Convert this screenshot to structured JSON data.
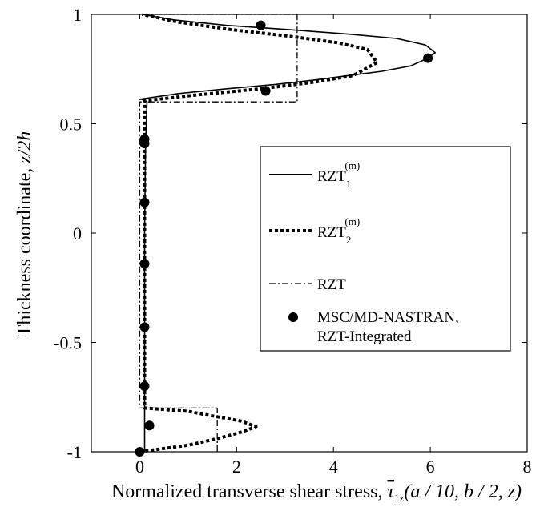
{
  "chart_data": {
    "type": "line",
    "xlabel_main": "Normalized transverse shear stress, ",
    "xlabel_tau": "τ",
    "xlabel_sub": "1z",
    "xlabel_args": "(a / 10, b / 2, z)",
    "ylabel_main": "Thickness coordinate, ",
    "ylabel_var": "z/2h",
    "xlim": [
      -1,
      8
    ],
    "ylim": [
      -1,
      1
    ],
    "xticks": [
      "0",
      "2",
      "4",
      "6",
      "8"
    ],
    "xtick_values": [
      0,
      2,
      4,
      6,
      8
    ],
    "yticks": [
      "1",
      "0.5",
      "0",
      "-0.5",
      "-1"
    ],
    "ytick_values": [
      1,
      0.5,
      0,
      -0.5,
      -1
    ],
    "legend_placement": "center-right",
    "series": [
      {
        "name": "RZT",
        "name_sub": "1",
        "name_sup": "(m)",
        "style": "solid",
        "x": [
          0.1,
          0.1,
          0.1,
          0.1,
          0.1,
          0.1,
          0.1,
          0.12,
          0.15,
          0.1,
          0.0,
          0.8,
          1.8,
          2.8,
          3.6,
          4.3,
          5.0,
          5.6,
          5.95,
          6.1,
          5.9,
          5.3,
          4.3,
          3.1,
          1.8,
          0.7,
          0.05
        ],
        "y": [
          -1.0,
          -0.95,
          -0.9,
          -0.85,
          -0.8,
          -0.4,
          0.0,
          0.4,
          0.6,
          0.61,
          0.612,
          0.638,
          0.66,
          0.68,
          0.7,
          0.72,
          0.74,
          0.765,
          0.8,
          0.825,
          0.86,
          0.89,
          0.91,
          0.93,
          0.95,
          0.975,
          1.0
        ]
      },
      {
        "name": "RZT",
        "name_sub": "2",
        "name_sup": "(m)",
        "style": "dotted",
        "x": [
          0.0,
          1.0,
          1.6,
          2.1,
          2.4,
          2.1,
          1.6,
          1.0,
          0.1,
          0.1,
          0.1,
          0.1,
          0.1,
          0.1,
          1.1,
          2.5,
          3.6,
          4.4,
          4.9,
          4.7,
          4.1,
          3.1,
          1.9,
          0.8,
          0.05
        ],
        "y": [
          -1.0,
          -0.97,
          -0.94,
          -0.91,
          -0.885,
          -0.86,
          -0.84,
          -0.815,
          -0.8,
          -0.4,
          0.0,
          0.4,
          0.6,
          0.605,
          0.63,
          0.66,
          0.69,
          0.72,
          0.78,
          0.84,
          0.87,
          0.9,
          0.93,
          0.965,
          1.0
        ]
      },
      {
        "name": "RZT",
        "name_sub": "",
        "name_sup": "",
        "style": "dashdot",
        "x": [
          1.6,
          1.6,
          0.0,
          0.0,
          3.25,
          3.25,
          0.05
        ],
        "y": [
          -1.0,
          -0.8,
          -0.8,
          0.6,
          0.6,
          1.0,
          1.0
        ]
      },
      {
        "name": "MSC/MD-NASTRAN,",
        "name_line2": "RZT-Integrated",
        "style": "markers",
        "x": [
          0.0,
          0.2,
          0.1,
          0.1,
          0.1,
          0.1,
          0.1,
          0.1,
          2.6,
          5.95,
          2.5
        ],
        "y": [
          -1.0,
          -0.88,
          -0.7,
          -0.43,
          -0.14,
          0.14,
          0.43,
          0.41,
          0.65,
          0.8,
          0.95
        ]
      }
    ]
  }
}
